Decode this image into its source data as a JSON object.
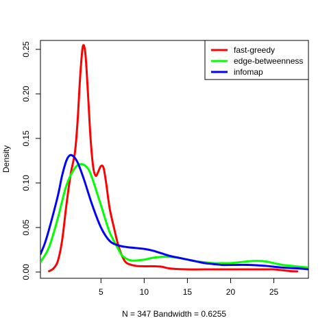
{
  "chart_data": {
    "type": "line",
    "title": "",
    "xlabel": "N = 347   Bandwidth = 0.6255",
    "ylabel": "Density",
    "xlim": [
      -2,
      29
    ],
    "ylim": [
      -0.007,
      0.26
    ],
    "x_ticks": [
      5,
      10,
      15,
      20,
      25
    ],
    "y_ticks": [
      0.0,
      0.05,
      0.1,
      0.15,
      0.2,
      0.25
    ],
    "y_tick_labels": [
      "0.00",
      "0.05",
      "0.10",
      "0.15",
      "0.20",
      "0.25"
    ],
    "grid": false,
    "legend_position": "top-right",
    "series": [
      {
        "name": "fast-greedy",
        "color": "#ff0000",
        "points": [
          [
            -1.0,
            0.001
          ],
          [
            -0.5,
            0.004
          ],
          [
            0.0,
            0.012
          ],
          [
            0.5,
            0.035
          ],
          [
            1.0,
            0.075
          ],
          [
            1.5,
            0.11
          ],
          [
            2.0,
            0.135
          ],
          [
            2.3,
            0.17
          ],
          [
            2.6,
            0.22
          ],
          [
            2.9,
            0.253
          ],
          [
            3.2,
            0.245
          ],
          [
            3.5,
            0.2
          ],
          [
            3.8,
            0.15
          ],
          [
            4.1,
            0.118
          ],
          [
            4.4,
            0.108
          ],
          [
            4.7,
            0.113
          ],
          [
            5.0,
            0.119
          ],
          [
            5.3,
            0.117
          ],
          [
            5.6,
            0.1
          ],
          [
            6.0,
            0.072
          ],
          [
            6.5,
            0.05
          ],
          [
            7.0,
            0.03
          ],
          [
            7.5,
            0.017
          ],
          [
            8.0,
            0.01
          ],
          [
            9.0,
            0.007
          ],
          [
            10.0,
            0.0065
          ],
          [
            11.0,
            0.0065
          ],
          [
            12.0,
            0.006
          ],
          [
            13.0,
            0.004
          ],
          [
            15.0,
            0.003
          ],
          [
            18.0,
            0.003
          ],
          [
            20.0,
            0.003
          ],
          [
            22.0,
            0.003
          ],
          [
            24.0,
            0.003
          ],
          [
            25.0,
            0.003
          ],
          [
            26.0,
            0.002
          ],
          [
            27.0,
            0.001
          ],
          [
            27.7,
            0.0008
          ]
        ]
      },
      {
        "name": "edge-betweenness",
        "color": "#00ff00",
        "points": [
          [
            -2.0,
            0.011
          ],
          [
            -1.0,
            0.028
          ],
          [
            0.0,
            0.06
          ],
          [
            1.0,
            0.097
          ],
          [
            2.0,
            0.117
          ],
          [
            2.8,
            0.121
          ],
          [
            3.5,
            0.116
          ],
          [
            4.0,
            0.105
          ],
          [
            5.0,
            0.075
          ],
          [
            6.0,
            0.045
          ],
          [
            7.0,
            0.026
          ],
          [
            7.5,
            0.018
          ],
          [
            8.5,
            0.013
          ],
          [
            10.0,
            0.014
          ],
          [
            11.0,
            0.016
          ],
          [
            12.0,
            0.017
          ],
          [
            13.0,
            0.017
          ],
          [
            14.0,
            0.016
          ],
          [
            15.0,
            0.014
          ],
          [
            16.0,
            0.012
          ],
          [
            17.0,
            0.011
          ],
          [
            18.0,
            0.01
          ],
          [
            19.0,
            0.01
          ],
          [
            20.0,
            0.01
          ],
          [
            21.0,
            0.011
          ],
          [
            22.0,
            0.012
          ],
          [
            23.0,
            0.0125
          ],
          [
            24.0,
            0.012
          ],
          [
            25.0,
            0.01
          ],
          [
            26.0,
            0.008
          ],
          [
            27.0,
            0.007
          ],
          [
            28.0,
            0.006
          ],
          [
            29.0,
            0.005
          ]
        ]
      },
      {
        "name": "infomap",
        "color": "#0000ff",
        "points": [
          [
            -2.0,
            0.02
          ],
          [
            -1.5,
            0.032
          ],
          [
            -1.0,
            0.048
          ],
          [
            0.0,
            0.085
          ],
          [
            0.5,
            0.108
          ],
          [
            1.0,
            0.125
          ],
          [
            1.4,
            0.131
          ],
          [
            1.8,
            0.13
          ],
          [
            2.3,
            0.123
          ],
          [
            3.0,
            0.105
          ],
          [
            4.0,
            0.075
          ],
          [
            5.0,
            0.05
          ],
          [
            6.0,
            0.035
          ],
          [
            7.0,
            0.03
          ],
          [
            8.0,
            0.028
          ],
          [
            9.0,
            0.027
          ],
          [
            10.0,
            0.026
          ],
          [
            11.0,
            0.024
          ],
          [
            12.0,
            0.021
          ],
          [
            13.0,
            0.018
          ],
          [
            14.0,
            0.016
          ],
          [
            15.0,
            0.014
          ],
          [
            16.0,
            0.012
          ],
          [
            17.0,
            0.01
          ],
          [
            18.0,
            0.009
          ],
          [
            19.0,
            0.008
          ],
          [
            20.0,
            0.008
          ],
          [
            22.0,
            0.008
          ],
          [
            24.0,
            0.007
          ],
          [
            26.0,
            0.005
          ],
          [
            28.0,
            0.004
          ],
          [
            29.0,
            0.003
          ]
        ]
      }
    ]
  }
}
